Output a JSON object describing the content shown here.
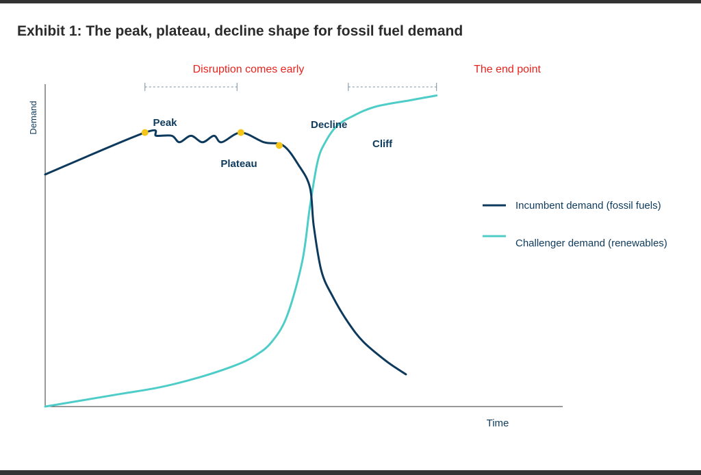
{
  "exhibit": {
    "title": "Exhibit 1: The peak, plateau, decline shape for fossil fuel demand"
  },
  "colors": {
    "incumbent": "#0d3a5c",
    "challenger": "#4ecdc8",
    "marker": "#f5c518",
    "annotation": "#e8231e",
    "axis": "#333333",
    "bracket": "#7a8fa0"
  },
  "chart_data": {
    "type": "line",
    "xlabel": "Time",
    "ylabel": "Demand",
    "xlim": [
      0,
      100
    ],
    "ylim": [
      0,
      100
    ],
    "grid": false,
    "ticks": false,
    "legend_placement": "right",
    "series": [
      {
        "name": "Incumbent demand (fossil fuels)",
        "key": "incumbent",
        "x": [
          0,
          26,
          29,
          33,
          35,
          38,
          41,
          44,
          46,
          51,
          57,
          62,
          66,
          69,
          70,
          72,
          75,
          79,
          83,
          89,
          94
        ],
        "y": [
          72,
          85,
          84,
          84,
          82,
          84,
          82,
          84,
          82,
          85,
          82,
          81,
          75,
          68,
          56,
          42,
          34,
          26,
          20,
          14,
          10
        ]
      },
      {
        "name": "Challenger demand (renewables)",
        "key": "challenger",
        "x": [
          0,
          10,
          20,
          30,
          40,
          50,
          55,
          59,
          63,
          67,
          69,
          71,
          73,
          76,
          80,
          86,
          95,
          102
        ],
        "y": [
          0,
          2,
          4,
          6,
          9,
          13,
          16,
          20,
          28,
          45,
          62,
          76,
          82,
          87,
          90,
          93,
          95,
          96.5
        ]
      }
    ],
    "phase_markers": [
      {
        "label": "Peak",
        "x": 26,
        "y": 85
      },
      {
        "label": "Decline",
        "x": 51,
        "y": 85
      },
      {
        "label": "Cliff",
        "x": 61,
        "y": 81
      }
    ],
    "annotations": [
      {
        "label": "Plateau",
        "x": 38,
        "y": 75
      },
      {
        "label": "Disruption comes early",
        "x_start": 26,
        "x_end": 50
      },
      {
        "label": "The end point",
        "x_start": 79,
        "x_end": 102
      }
    ]
  }
}
